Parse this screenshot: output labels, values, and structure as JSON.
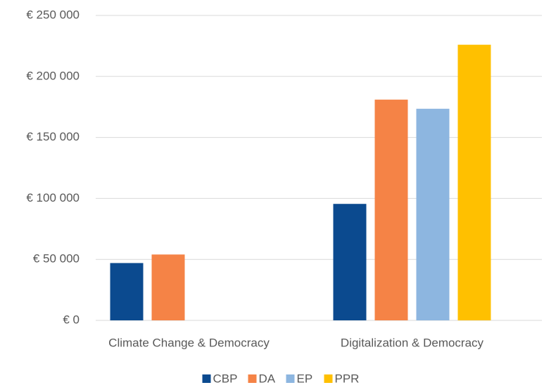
{
  "chart_data": {
    "type": "bar",
    "categories": [
      "Climate Change & Democracy",
      "Digitalization & Democracy"
    ],
    "series": [
      {
        "name": "CBP",
        "color": "#0b4a8f",
        "values": [
          47000,
          95500
        ]
      },
      {
        "name": "DA",
        "color": "#f58346",
        "values": [
          54000,
          181000
        ]
      },
      {
        "name": "EP",
        "color": "#8db6e0",
        "values": [
          null,
          173500
        ]
      },
      {
        "name": "PPR",
        "color": "#ffc000",
        "values": [
          null,
          226000
        ]
      }
    ],
    "ylim": [
      0,
      250000
    ],
    "yticks": [
      {
        "value": 0,
        "label": "€ 0"
      },
      {
        "value": 50000,
        "label": "€ 50 000"
      },
      {
        "value": 100000,
        "label": "€ 100 000"
      },
      {
        "value": 150000,
        "label": "€ 150 000"
      },
      {
        "value": 200000,
        "label": "€ 200 000"
      },
      {
        "value": 250000,
        "label": "€ 250 000"
      }
    ],
    "grid": true,
    "legend": "bottom"
  }
}
